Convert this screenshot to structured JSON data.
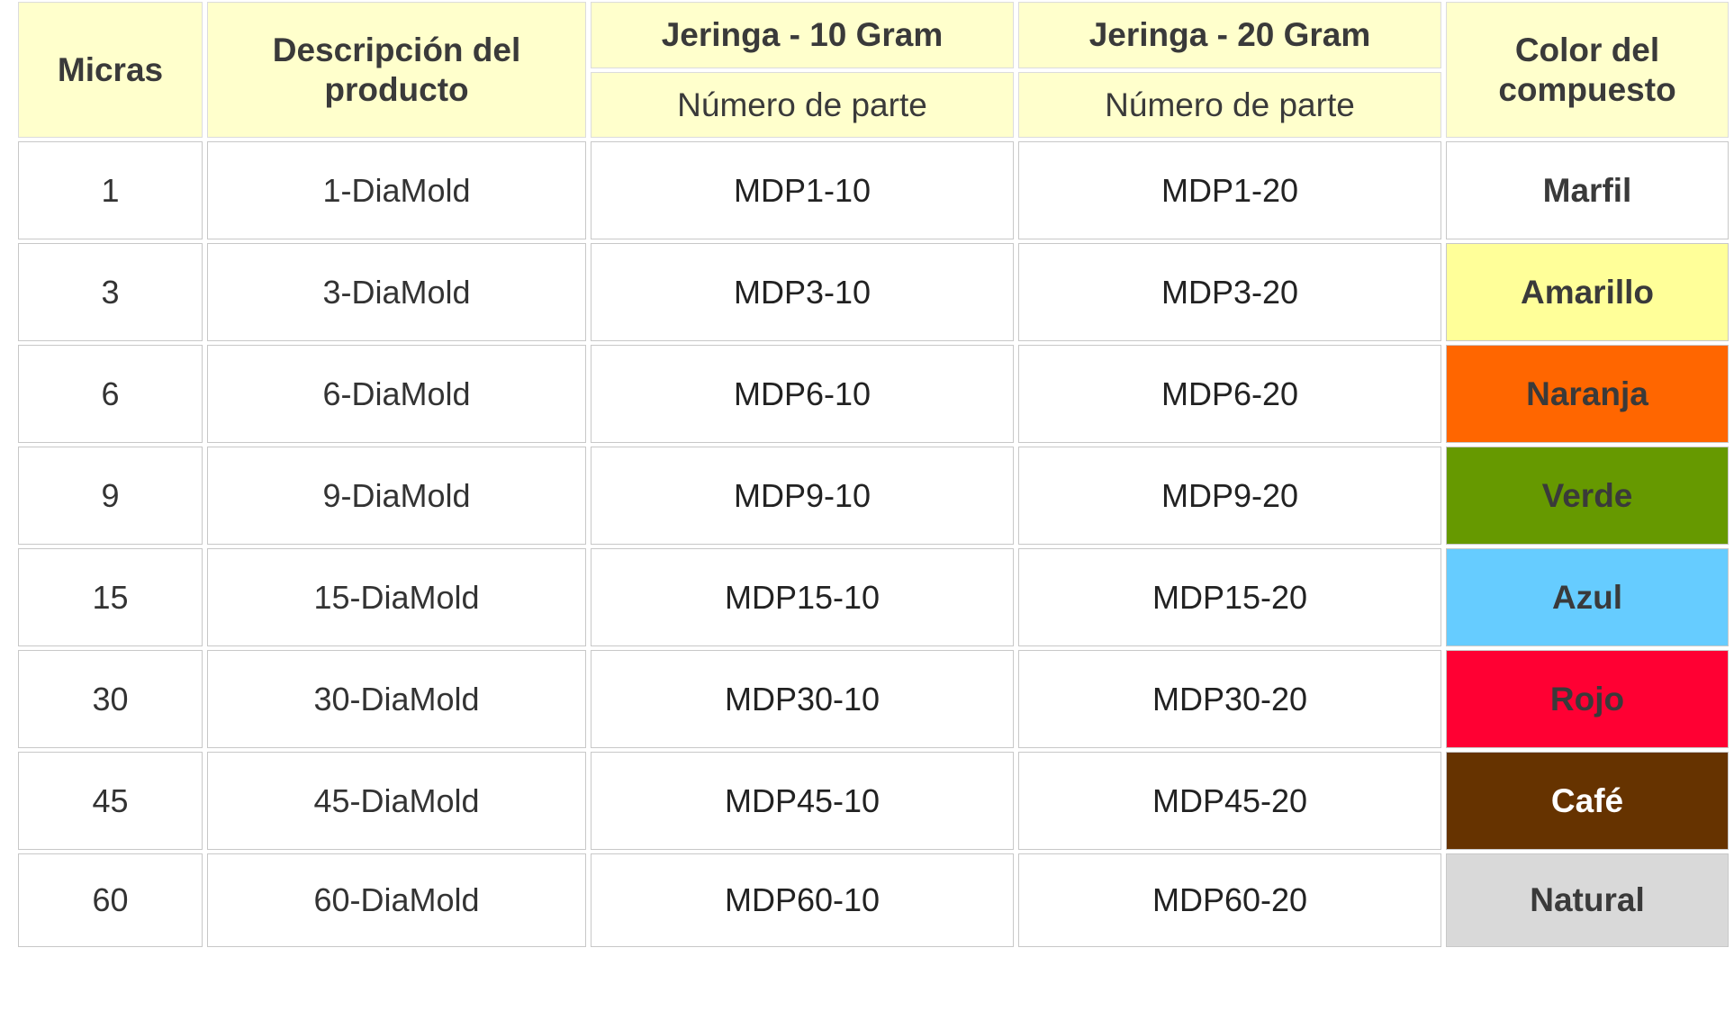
{
  "table": {
    "headers": {
      "micras": "Micras",
      "descripcion": "Descripción del producto",
      "jeringa_10": "Jeringa - 10 Gram",
      "jeringa_20": "Jeringa - 20 Gram",
      "numero_parte_10": "Número de parte",
      "numero_parte_20": "Número de parte",
      "color": "Color del compuesto"
    },
    "rows": [
      {
        "micras": "1",
        "descripcion": "1-DiaMold",
        "parte_10": "MDP1-10",
        "parte_20": "MDP1-20",
        "color": "Marfil",
        "swatch": "#ffffff",
        "text_color": "#3a3a3a"
      },
      {
        "micras": "3",
        "descripcion": "3-DiaMold",
        "parte_10": "MDP3-10",
        "parte_20": "MDP3-20",
        "color": "Amarillo",
        "swatch": "#ffff99",
        "text_color": "#3a3a3a"
      },
      {
        "micras": "6",
        "descripcion": "6-DiaMold",
        "parte_10": "MDP6-10",
        "parte_20": "MDP6-20",
        "color": "Naranja",
        "swatch": "#ff6600",
        "text_color": "#3a3a3a"
      },
      {
        "micras": "9",
        "descripcion": "9-DiaMold",
        "parte_10": "MDP9-10",
        "parte_20": "MDP9-20",
        "color": "Verde",
        "swatch": "#669900",
        "text_color": "#3a3a3a"
      },
      {
        "micras": "15",
        "descripcion": "15-DiaMold",
        "parte_10": "MDP15-10",
        "parte_20": "MDP15-20",
        "color": "Azul",
        "swatch": "#66ccff",
        "text_color": "#3a3a3a"
      },
      {
        "micras": "30",
        "descripcion": "30-DiaMold",
        "parte_10": "MDP30-10",
        "parte_20": "MDP30-20",
        "color": "Rojo",
        "swatch": "#ff0033",
        "text_color": "#3a3a3a"
      },
      {
        "micras": "45",
        "descripcion": "45-DiaMold",
        "parte_10": "MDP45-10",
        "parte_20": "MDP45-20",
        "color": "Café",
        "swatch": "#663300",
        "text_color": "#ffffff"
      },
      {
        "micras": "60",
        "descripcion": "60-DiaMold",
        "parte_10": "MDP60-10",
        "parte_20": "MDP60-20",
        "color": "Natural",
        "swatch": "#d9d9d9",
        "text_color": "#3a3a3a"
      }
    ]
  }
}
